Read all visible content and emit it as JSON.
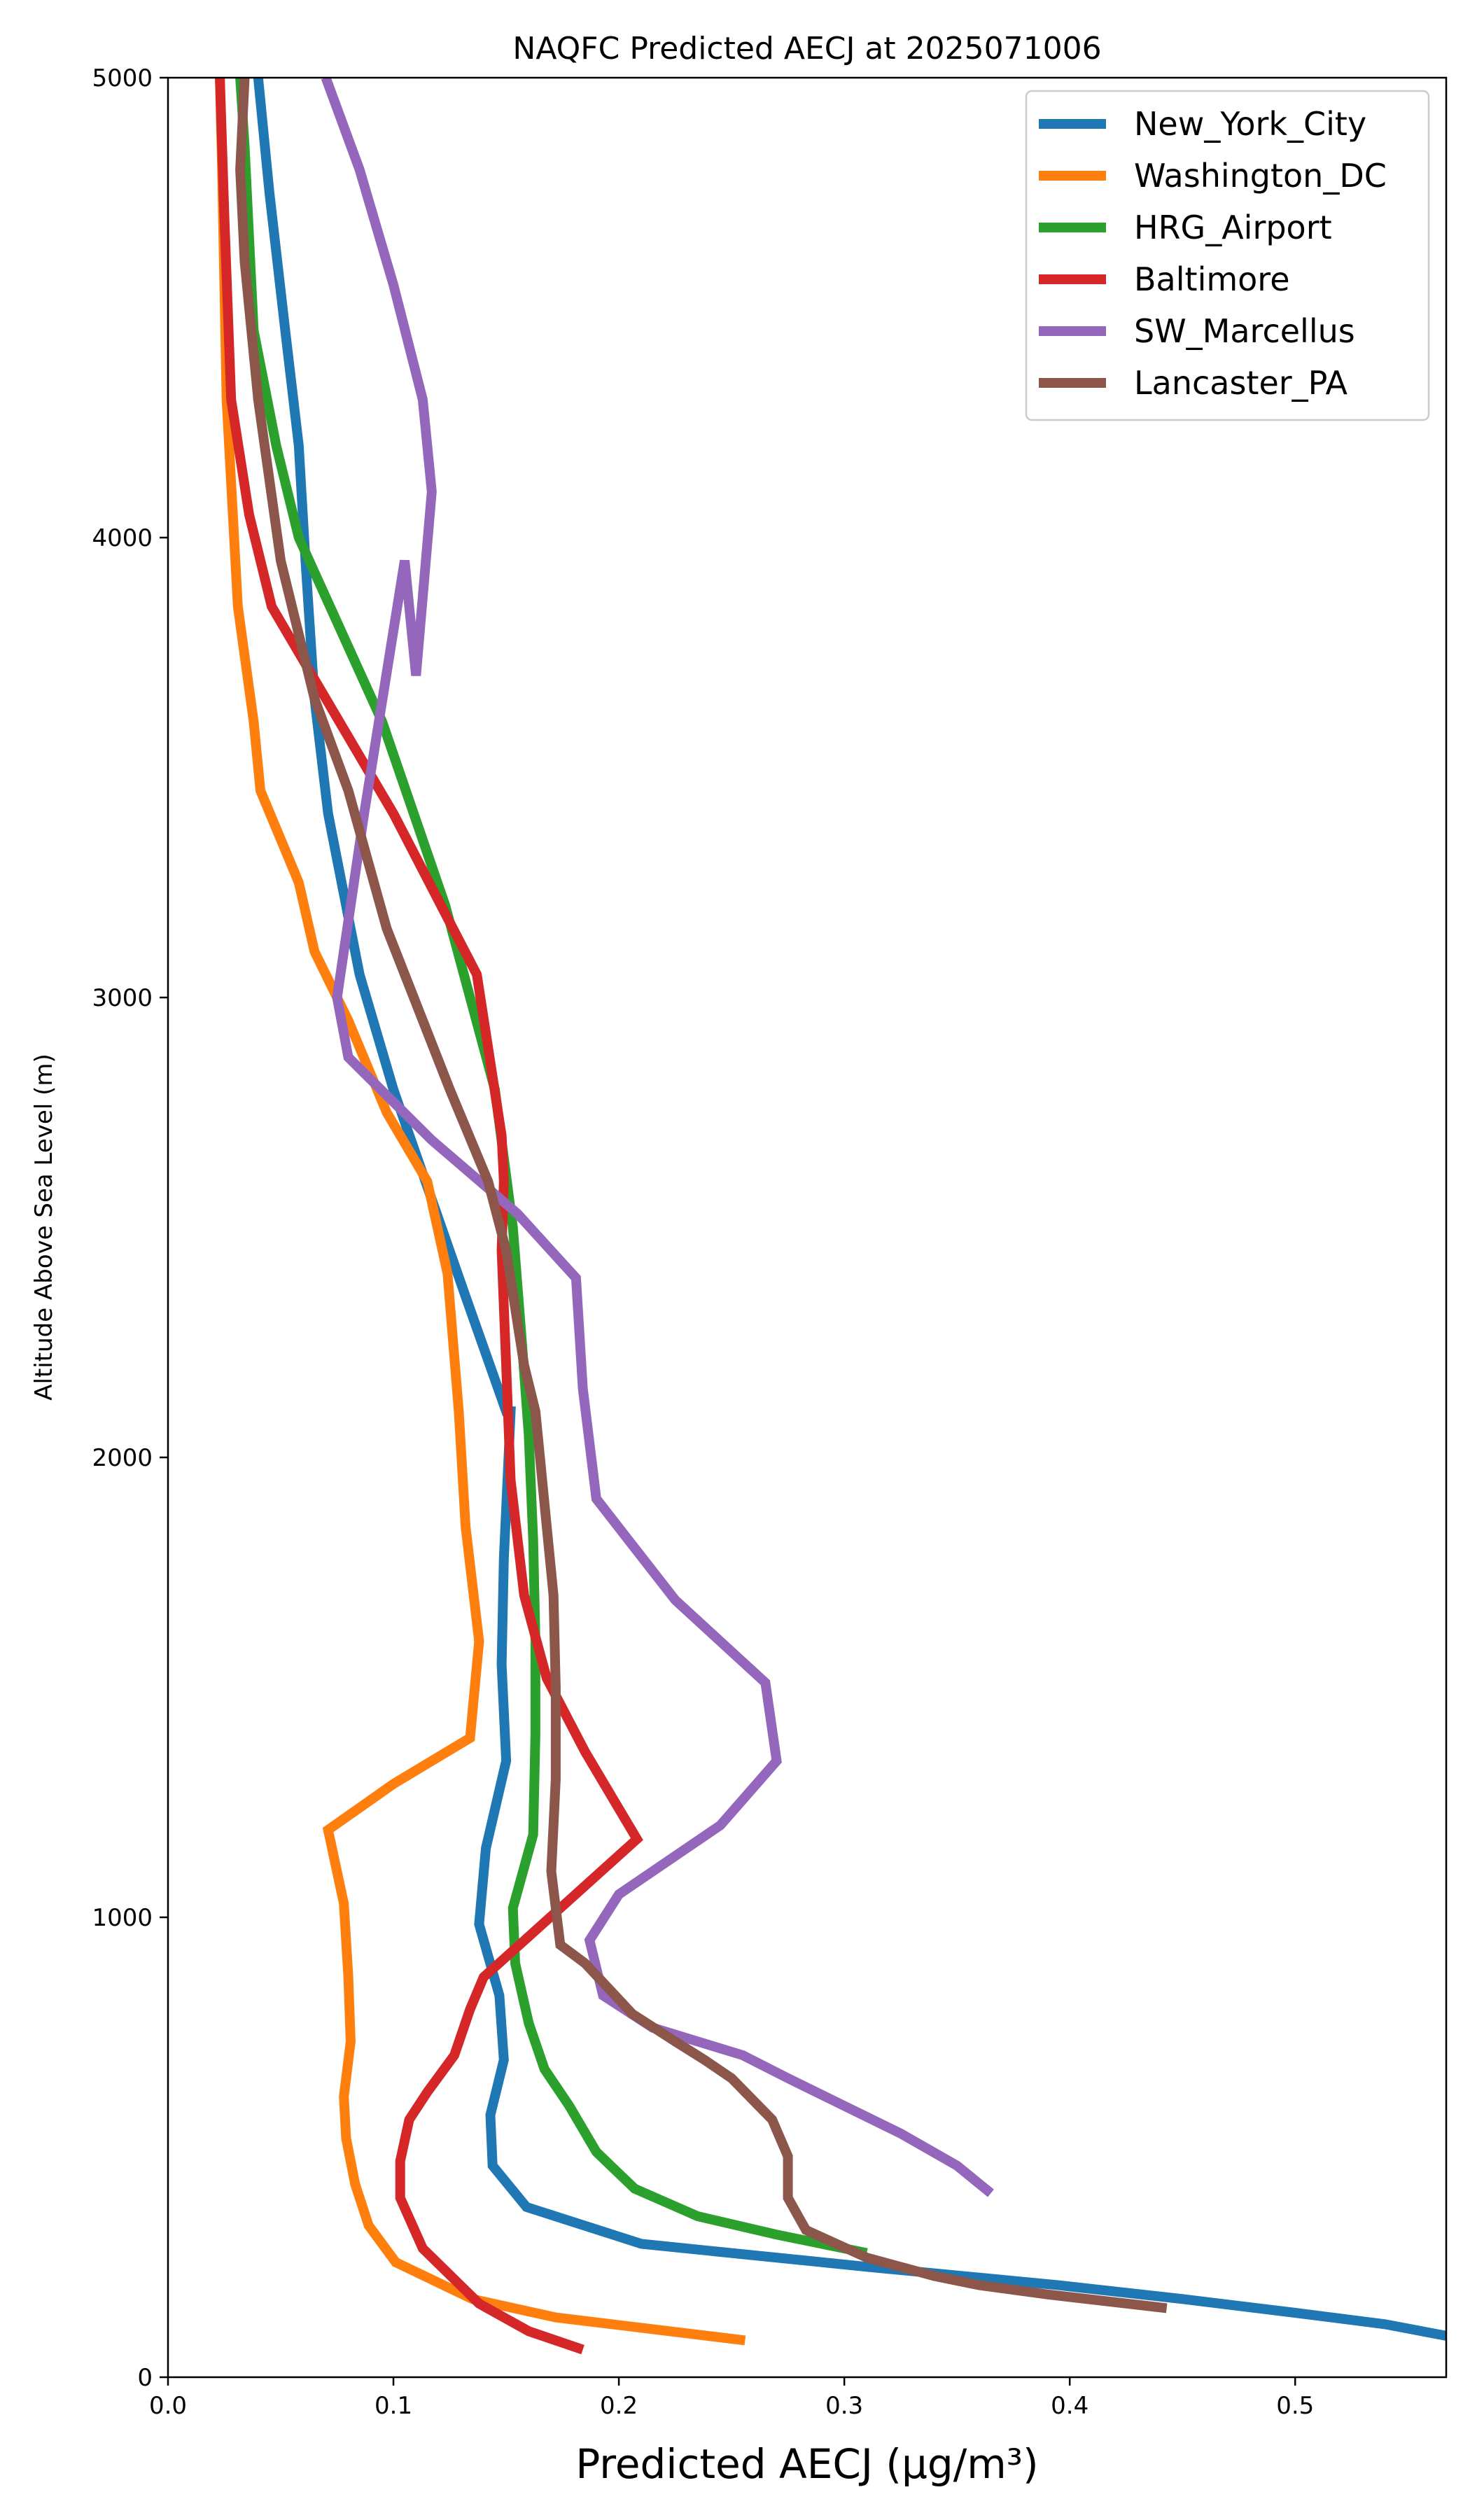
{
  "chart_data": {
    "type": "line",
    "title": "NAQFC Predicted AECJ at 2025071006",
    "xlabel": "Predicted AECJ (μg/m³)",
    "ylabel": "Altitude Above Sea Level (m)",
    "xlim": [
      0.0,
      0.567
    ],
    "ylim": [
      0,
      5000
    ],
    "xticks": [
      "0.0",
      "0.1",
      "0.2",
      "0.3",
      "0.4",
      "0.5"
    ],
    "yticks": [
      "0",
      "1000",
      "2000",
      "3000",
      "4000",
      "5000"
    ],
    "grid": false,
    "legend_position": "top-right",
    "series": [
      {
        "name": "New_York_City",
        "color": "#1f77b4",
        "x": [
          0.567,
          0.54,
          0.5,
          0.45,
          0.395,
          0.31,
          0.21,
          0.159,
          0.144,
          0.143,
          0.149,
          0.147,
          0.138,
          0.141,
          0.15,
          0.148,
          0.149,
          0.152,
          0.15,
          0.132,
          0.1,
          0.085,
          0.071,
          0.065,
          0.061,
          0.058,
          0.052,
          0.045,
          0.04
        ],
        "y": [
          90,
          115,
          140,
          170,
          200,
          240,
          290,
          370,
          460,
          570,
          690,
          830,
          985,
          1150,
          1340,
          1550,
          1780,
          2100,
          2100,
          2350,
          2800,
          3050,
          3400,
          3650,
          3950,
          4200,
          4450,
          4750,
          5000
        ]
      },
      {
        "name": "Washington_DC",
        "color": "#ff7f0e",
        "x": [
          0.256,
          0.172,
          0.135,
          0.101,
          0.089,
          0.083,
          0.079,
          0.078,
          0.081,
          0.08,
          0.078,
          0.071,
          0.1,
          0.134,
          0.138,
          0.132,
          0.129,
          0.124,
          0.115,
          0.097,
          0.08,
          0.065,
          0.058,
          0.041,
          0.038,
          0.031,
          0.026,
          0.024,
          0.023
        ],
        "y": [
          80,
          130,
          170,
          250,
          330,
          420,
          520,
          610,
          730,
          870,
          1030,
          1190,
          1290,
          1390,
          1600,
          1850,
          2100,
          2400,
          2600,
          2750,
          2950,
          3100,
          3250,
          3450,
          3600,
          3850,
          4300,
          4800,
          5000
        ]
      },
      {
        "name": "HRG_Airport",
        "color": "#2ca02c",
        "x": [
          0.31,
          0.27,
          0.235,
          0.207,
          0.19,
          0.178,
          0.167,
          0.16,
          0.154,
          0.153,
          0.162,
          0.163,
          0.163,
          0.162,
          0.16,
          0.157,
          0.153,
          0.145,
          0.123,
          0.095,
          0.058,
          0.048,
          0.038,
          0.036,
          0.034,
          0.032
        ],
        "y": [
          270,
          310,
          350,
          410,
          490,
          590,
          670,
          770,
          900,
          1020,
          1180,
          1400,
          1600,
          1820,
          2050,
          2250,
          2500,
          2800,
          3200,
          3600,
          4000,
          4200,
          4450,
          4650,
          4850,
          5000
        ]
      },
      {
        "name": "Baltimore",
        "color": "#d62728",
        "x": [
          0.184,
          0.16,
          0.138,
          0.113,
          0.103,
          0.103,
          0.107,
          0.115,
          0.127,
          0.134,
          0.14,
          0.174,
          0.208,
          0.185,
          0.168,
          0.158,
          0.152,
          0.15,
          0.148,
          0.149,
          0.148,
          0.137,
          0.1,
          0.07,
          0.046,
          0.036,
          0.028,
          0.025,
          0.023
        ],
        "y": [
          60,
          100,
          160,
          280,
          390,
          470,
          560,
          620,
          700,
          800,
          870,
          1020,
          1170,
          1360,
          1520,
          1700,
          1950,
          2200,
          2450,
          2600,
          2700,
          3050,
          3400,
          3650,
          3850,
          4050,
          4300,
          4700,
          5000
        ]
      },
      {
        "name": "SW_Marcellus",
        "color": "#9467bd",
        "x": [
          0.365,
          0.35,
          0.325,
          0.3,
          0.275,
          0.255,
          0.235,
          0.215,
          0.193,
          0.187,
          0.2,
          0.245,
          0.27,
          0.265,
          0.225,
          0.19,
          0.184,
          0.181,
          0.155,
          0.117,
          0.08,
          0.075,
          0.087,
          0.105,
          0.11,
          0.117,
          0.113,
          0.1,
          0.085,
          0.07
        ],
        "y": [
          400,
          460,
          530,
          590,
          650,
          700,
          730,
          760,
          830,
          950,
          1050,
          1200,
          1340,
          1510,
          1690,
          1910,
          2150,
          2390,
          2530,
          2690,
          2870,
          3000,
          3400,
          3950,
          3700,
          4100,
          4300,
          4550,
          4800,
          5000
        ]
      },
      {
        "name": "Lancaster_PA",
        "color": "#8c564b",
        "x": [
          0.443,
          0.39,
          0.36,
          0.34,
          0.31,
          0.283,
          0.275,
          0.275,
          0.268,
          0.26,
          0.25,
          0.238,
          0.225,
          0.206,
          0.185,
          0.174,
          0.17,
          0.172,
          0.172,
          0.171,
          0.168,
          0.165,
          0.163,
          0.158,
          0.15,
          0.142,
          0.125,
          0.097,
          0.08,
          0.065,
          0.05,
          0.04,
          0.034,
          0.032,
          0.034
        ],
        "y": [
          150,
          180,
          200,
          220,
          260,
          320,
          390,
          480,
          560,
          600,
          650,
          690,
          730,
          790,
          900,
          940,
          1100,
          1300,
          1500,
          1700,
          1850,
          2000,
          2100,
          2200,
          2450,
          2600,
          2800,
          3150,
          3450,
          3650,
          3950,
          4300,
          4600,
          4800,
          5000
        ]
      }
    ]
  }
}
